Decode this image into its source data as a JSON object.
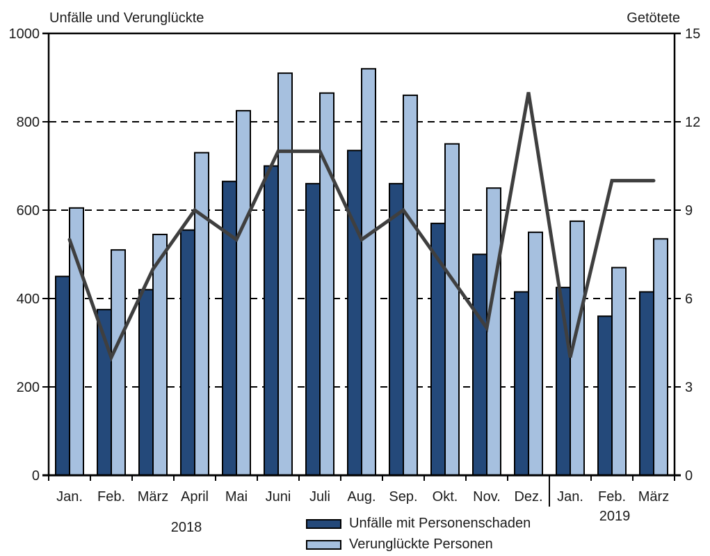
{
  "chart_data": {
    "type": "bar",
    "combo": "grouped bars (left axis) with line overlay (right axis)",
    "categories": [
      "Jan.",
      "Feb.",
      "März",
      "April",
      "Mai",
      "Juni",
      "Juli",
      "Aug.",
      "Sep.",
      "Okt.",
      "Nov.",
      "Dez.",
      "Jan.",
      "Feb.",
      "März"
    ],
    "year_groups": [
      {
        "label": "2018",
        "month_span": "Jan.–Dez."
      },
      {
        "label": "2019",
        "month_span": "Jan.–März"
      }
    ],
    "series": [
      {
        "name": "Unfälle mit Personenschaden",
        "type": "bar",
        "axis": "left",
        "color": "#24497A",
        "values": [
          450,
          375,
          420,
          555,
          665,
          700,
          660,
          735,
          660,
          570,
          500,
          415,
          425,
          360,
          415
        ]
      },
      {
        "name": "Verunglückte Personen",
        "type": "bar",
        "axis": "left",
        "color": "#A6C0DF",
        "values": [
          605,
          510,
          545,
          730,
          825,
          910,
          865,
          920,
          860,
          750,
          650,
          550,
          575,
          470,
          535
        ]
      },
      {
        "name": "Getötete",
        "type": "line",
        "axis": "right",
        "color": "#3F3F3F",
        "values": [
          8,
          4,
          7,
          9,
          8,
          11,
          11,
          8,
          9,
          7,
          5,
          13,
          4,
          10,
          10
        ]
      }
    ],
    "left_axis": {
      "title": "Unfälle und Verunglückte",
      "min": 0,
      "max": 1000,
      "ticks": [
        0,
        200,
        400,
        600,
        800,
        1000
      ]
    },
    "right_axis": {
      "title": "Getötete",
      "min": 0,
      "max": 15,
      "ticks": [
        0,
        3,
        6,
        9,
        12,
        15
      ]
    },
    "grid": {
      "horizontal_dashed_at": [
        200,
        400,
        600,
        800
      ]
    },
    "legend_position": "bottom-center",
    "colors": {
      "axis": "#000000",
      "text": "#1a1a1a",
      "background": "#ffffff"
    }
  }
}
